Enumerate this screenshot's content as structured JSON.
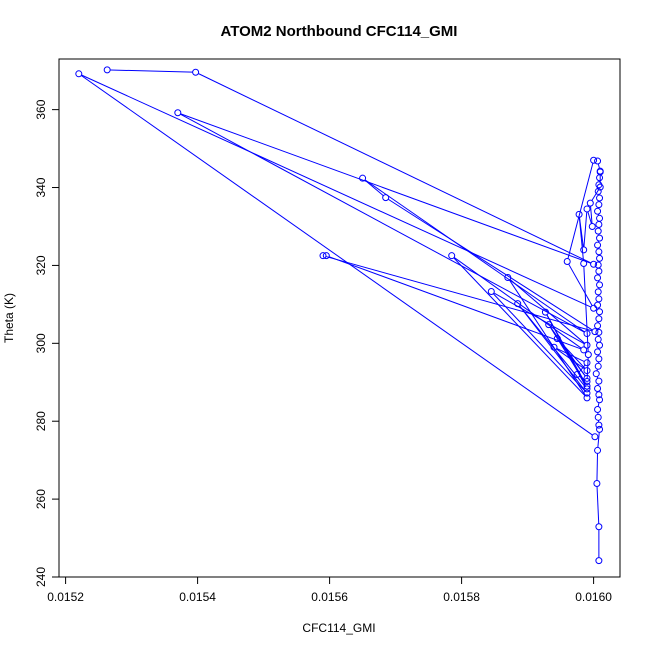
{
  "chart_data": {
    "type": "line",
    "title": "ATOM2 Northbound CFC114_GMI",
    "xlabel": "CFC114_GMI",
    "ylabel": "Theta (K)",
    "xlim": [
      0.01519,
      0.01604
    ],
    "ylim": [
      240,
      373
    ],
    "x_ticks": [
      "0.0152",
      "0.0154",
      "0.0156",
      "0.0158",
      "0.0160"
    ],
    "x_tick_values": [
      0.0152,
      0.0154,
      0.0156,
      0.0158,
      0.016
    ],
    "y_ticks": [
      "240",
      "260",
      "280",
      "300",
      "320",
      "340",
      "360"
    ],
    "y_tick_values": [
      240,
      260,
      280,
      300,
      320,
      340,
      360
    ],
    "series_color": "#0000ff",
    "series": [
      {
        "marker": "open-circle",
        "points": [
          [
            0.016008,
            244.2
          ],
          [
            0.016008,
            252.9
          ],
          [
            0.016005,
            264.0
          ],
          [
            0.016006,
            272.5
          ],
          [
            0.016009,
            277.9
          ],
          [
            0.016008,
            279.0
          ],
          [
            0.016007,
            281.0
          ],
          [
            0.016006,
            283.0
          ],
          [
            0.016009,
            285.5
          ],
          [
            0.016008,
            286.8
          ],
          [
            0.016006,
            288.4
          ],
          [
            0.016008,
            290.3
          ],
          [
            0.016004,
            292.2
          ],
          [
            0.016007,
            294.1
          ],
          [
            0.016008,
            296.0
          ],
          [
            0.016006,
            297.8
          ],
          [
            0.016009,
            299.5
          ],
          [
            0.016007,
            301.0
          ],
          [
            0.016008,
            302.8
          ],
          [
            0.016006,
            304.5
          ],
          [
            0.016008,
            306.3
          ],
          [
            0.016009,
            308.1
          ],
          [
            0.016006,
            309.8
          ],
          [
            0.016008,
            311.4
          ],
          [
            0.016007,
            313.2
          ],
          [
            0.016009,
            315.0
          ],
          [
            0.016006,
            316.8
          ],
          [
            0.016008,
            318.5
          ],
          [
            0.016007,
            320.1
          ],
          [
            0.016009,
            321.8
          ],
          [
            0.016008,
            323.5
          ],
          [
            0.016006,
            325.2
          ],
          [
            0.016009,
            327.0
          ],
          [
            0.016007,
            328.8
          ],
          [
            0.016008,
            330.5
          ],
          [
            0.016009,
            332.1
          ],
          [
            0.016006,
            333.9
          ],
          [
            0.016008,
            335.6
          ],
          [
            0.016009,
            337.3
          ],
          [
            0.016007,
            339.0
          ],
          [
            0.016008,
            340.7
          ],
          [
            0.016009,
            342.5
          ],
          [
            0.01601,
            344.2
          ],
          [
            0.016006,
            346.8
          ],
          [
            0.016,
            347.0
          ],
          [
            0.01596,
            321.0
          ],
          [
            0.016,
            309.0
          ],
          [
            0.01522,
            369.2
          ],
          [
            0.016002,
            276.0
          ]
        ]
      },
      {
        "marker": "open-circle",
        "points": [
          [
            0.015263,
            370.2
          ],
          [
            0.015397,
            369.6
          ],
          [
            0.016,
            320.3
          ],
          [
            0.01537,
            359.2
          ],
          [
            0.01599,
            302.5
          ],
          [
            0.01565,
            342.4
          ],
          [
            0.015685,
            337.4
          ],
          [
            0.016002,
            303.0
          ],
          [
            0.01559,
            322.5
          ],
          [
            0.015595,
            322.5
          ],
          [
            0.015985,
            298.3
          ],
          [
            0.015785,
            322.5
          ],
          [
            0.01599,
            286.0
          ],
          [
            0.01587,
            316.9
          ],
          [
            0.01599,
            299.5
          ],
          [
            0.015845,
            313.3
          ],
          [
            0.01599,
            287.2
          ],
          [
            0.015885,
            310.2
          ],
          [
            0.01599,
            288.3
          ],
          [
            0.015927,
            308.0
          ],
          [
            0.01599,
            289.0
          ],
          [
            0.015932,
            304.8
          ],
          [
            0.01599,
            291.0
          ],
          [
            0.015945,
            301.2
          ],
          [
            0.01599,
            293.0
          ],
          [
            0.01594,
            299.0
          ],
          [
            0.01599,
            295.0
          ],
          [
            0.015975,
            292.0
          ],
          [
            0.01599,
            290.2
          ],
          [
            0.015992,
            297.1
          ],
          [
            0.015985,
            320.5
          ],
          [
            0.015978,
            333.1
          ],
          [
            0.015985,
            324.0
          ],
          [
            0.01599,
            334.5
          ],
          [
            0.015998,
            330.0
          ],
          [
            0.015995,
            336.0
          ],
          [
            0.01601,
            340.1
          ],
          [
            0.01601,
            344.0
          ]
        ]
      }
    ]
  }
}
